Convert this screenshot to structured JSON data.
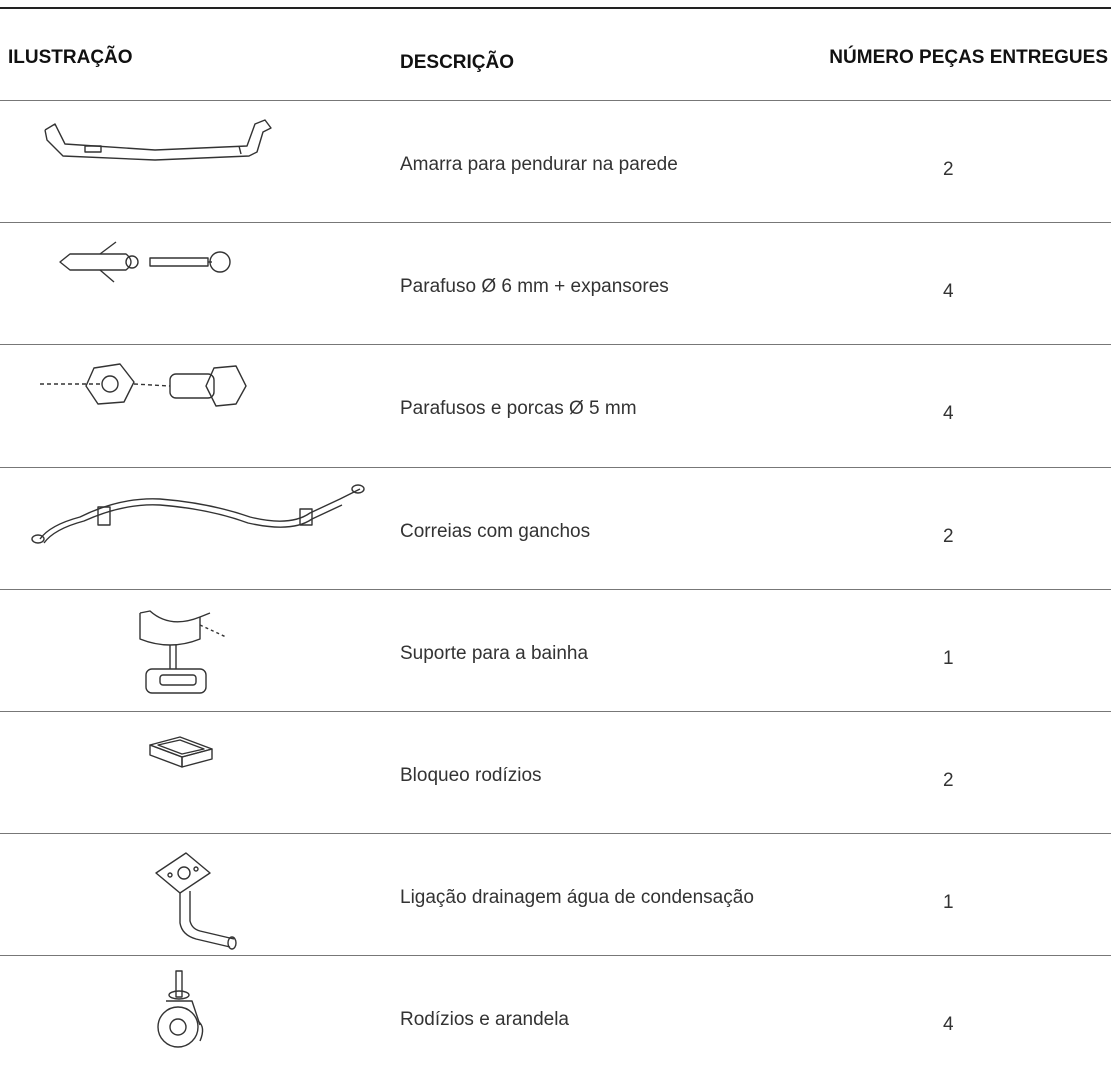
{
  "header": {
    "columns": [
      "ILUSTRAÇÃO",
      "DESCRIÇÃO",
      "NÚMERO PEÇAS ENTREGUES"
    ]
  },
  "table": {
    "rows": [
      {
        "description": "Amarra para pendurar na parede",
        "quantity": 2
      },
      {
        "description": "Parafuso Ø 6 mm + expansores",
        "quantity": 4
      },
      {
        "description": "Parafusos e porcas Ø 5 mm",
        "quantity": 4
      },
      {
        "description": "Correias com ganchos",
        "quantity": 2
      },
      {
        "description": "Suporte para a bainha",
        "quantity": 1
      },
      {
        "description": "Bloqueo rodízios",
        "quantity": 2
      },
      {
        "description": "Ligação drainagem água de condensação",
        "quantity": 1
      },
      {
        "description": "Rodízios e arandela",
        "quantity": 4
      }
    ]
  }
}
